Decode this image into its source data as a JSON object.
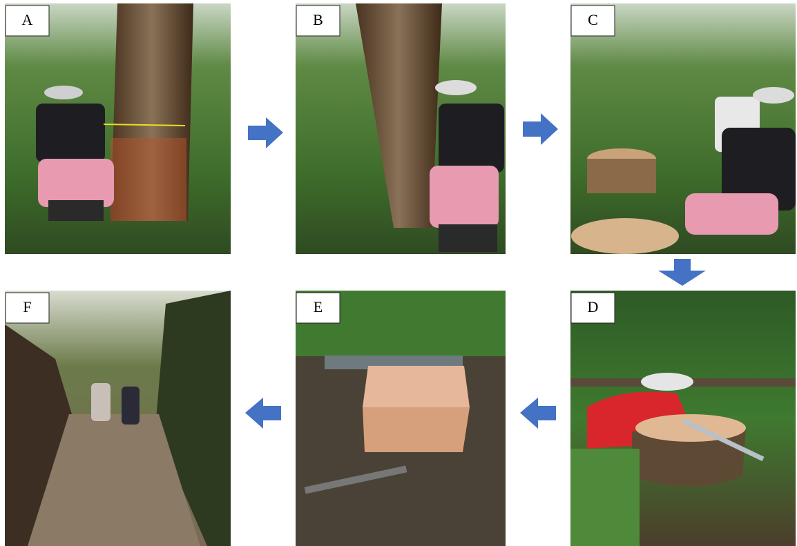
{
  "panels": [
    "A",
    "B",
    "C",
    "D",
    "E",
    "F"
  ]
}
